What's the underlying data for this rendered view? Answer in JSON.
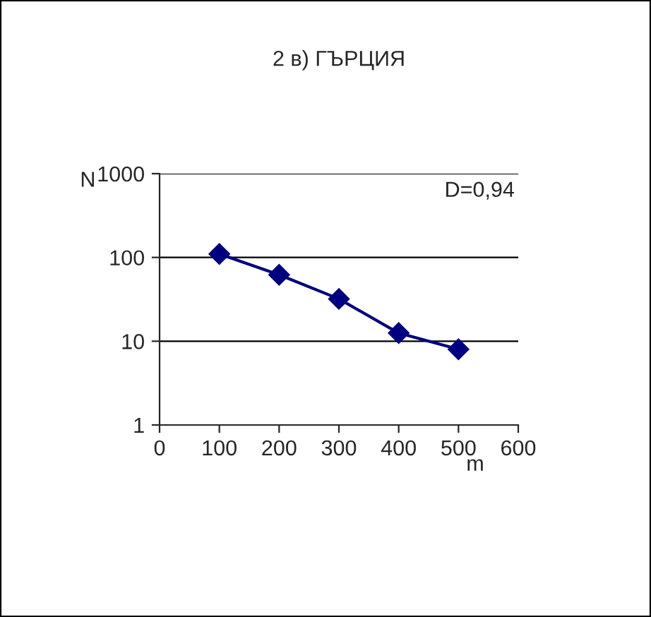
{
  "chart_data": {
    "type": "line",
    "title": "2 в) ГЪРЦИЯ",
    "xlabel": "m",
    "ylabel": "N",
    "x": [
      100,
      200,
      300,
      400,
      500
    ],
    "series": [
      {
        "color": "#000080",
        "values": [
          110,
          62,
          32,
          12.5,
          8
        ]
      }
    ],
    "xlim": [
      0,
      600
    ],
    "xticks": [
      0,
      100,
      200,
      300,
      400,
      500,
      600
    ],
    "ylim": [
      1,
      1000
    ],
    "yticks": [
      1,
      10,
      100,
      1000
    ],
    "log": true,
    "grid": "y",
    "marker": "diamond",
    "line_style": "solid",
    "annotations": [
      "D=0,94"
    ]
  }
}
